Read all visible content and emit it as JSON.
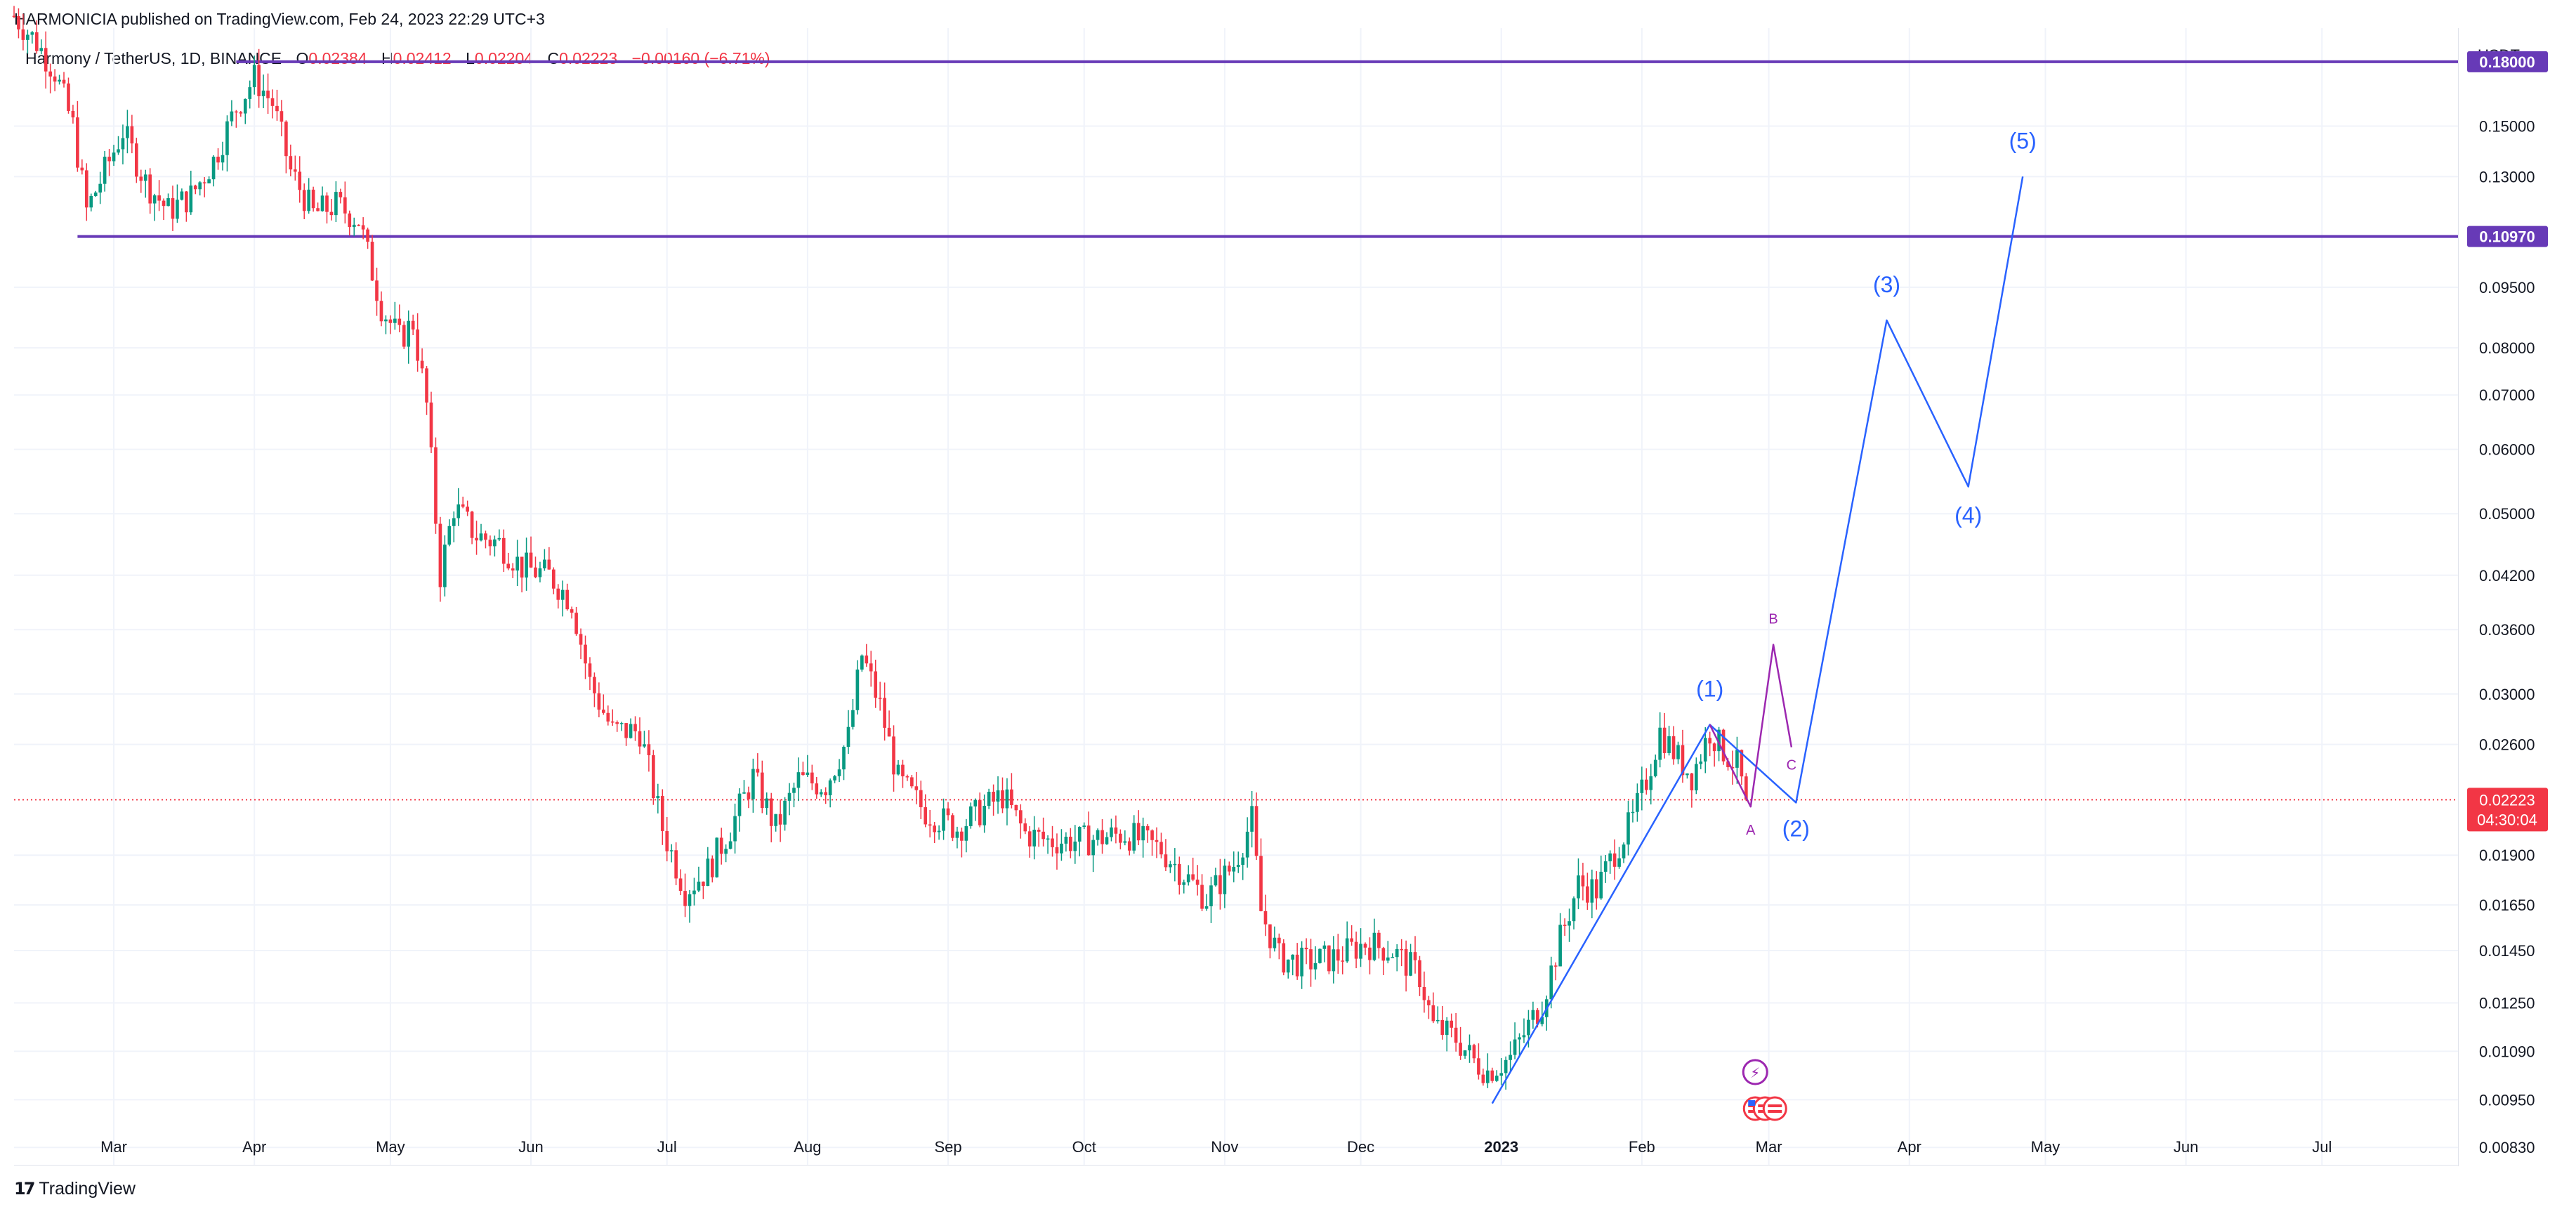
{
  "header": {
    "published": "HARMONICIA published on TradingView.com, Feb 24, 2023 22:29 UTC+3"
  },
  "legend": {
    "symbol": "Harmony / TetherUS, 1D, BINANCE",
    "o_label": "O",
    "o": "0.02384",
    "h_label": "H",
    "h": "0.02412",
    "l_label": "L",
    "l": "0.02204",
    "c_label": "C",
    "c": "0.02223",
    "change": "−0.00160 (−6.71%)"
  },
  "axis": {
    "currency": "USDT"
  },
  "footer": {
    "logo_mark": "𝟭𝟳",
    "logo_text": "TradingView"
  },
  "colors": {
    "up": "#089981",
    "down": "#f23645",
    "level": "#673ab7",
    "wave": "#2962ff",
    "abc": "#9c27b0",
    "grid": "#f0f3fa",
    "price": "#f23645"
  },
  "chart_data": {
    "type": "candlestick",
    "y_scale": "log",
    "y_range": [
      0.0079,
      0.198
    ],
    "x_range": [
      "2022-02-07",
      "2023-07-31"
    ],
    "grid": true,
    "y_ticks": [
      "0.15000",
      "0.13000",
      "0.09500",
      "0.08000",
      "0.07000",
      "0.06000",
      "0.05000",
      "0.04200",
      "0.03600",
      "0.03000",
      "0.02600",
      "0.01900",
      "0.01650",
      "0.01450",
      "0.01250",
      "0.01090",
      "0.00950",
      "0.00830"
    ],
    "x_ticks": [
      {
        "label": "Mar",
        "date": "2022-03-01"
      },
      {
        "label": "Apr",
        "date": "2022-04-01"
      },
      {
        "label": "May",
        "date": "2022-05-01"
      },
      {
        "label": "Jun",
        "date": "2022-06-01"
      },
      {
        "label": "Jul",
        "date": "2022-07-01"
      },
      {
        "label": "Aug",
        "date": "2022-08-01"
      },
      {
        "label": "Sep",
        "date": "2022-09-01"
      },
      {
        "label": "Oct",
        "date": "2022-10-01"
      },
      {
        "label": "Nov",
        "date": "2022-11-01"
      },
      {
        "label": "Dec",
        "date": "2022-12-01"
      },
      {
        "label": "2023",
        "date": "2023-01-01",
        "bold": true
      },
      {
        "label": "Feb",
        "date": "2023-02-01"
      },
      {
        "label": "Mar",
        "date": "2023-03-01"
      },
      {
        "label": "Apr",
        "date": "2023-04-01"
      },
      {
        "label": "May",
        "date": "2023-05-01"
      },
      {
        "label": "Jun",
        "date": "2023-06-01"
      },
      {
        "label": "Jul",
        "date": "2023-07-01"
      }
    ],
    "horizontal_levels": [
      {
        "value": 0.18,
        "label": "0.18000",
        "from": "2022-03-28"
      },
      {
        "value": 0.1097,
        "label": "0.10970",
        "from": "2022-02-21"
      }
    ],
    "last_price": {
      "value": 0.02223,
      "label": "0.02223",
      "countdown": "04:30:04"
    },
    "price_path": [
      [
        "2022-02-07",
        0.205
      ],
      [
        "2022-02-12",
        0.19
      ],
      [
        "2022-02-16",
        0.175
      ],
      [
        "2022-02-20",
        0.15
      ],
      [
        "2022-02-23",
        0.118
      ],
      [
        "2022-02-27",
        0.132
      ],
      [
        "2022-03-03",
        0.148
      ],
      [
        "2022-03-08",
        0.128
      ],
      [
        "2022-03-13",
        0.118
      ],
      [
        "2022-03-18",
        0.123
      ],
      [
        "2022-03-23",
        0.136
      ],
      [
        "2022-03-28",
        0.158
      ],
      [
        "2022-04-01",
        0.172
      ],
      [
        "2022-04-05",
        0.16
      ],
      [
        "2022-04-09",
        0.132
      ],
      [
        "2022-04-14",
        0.117
      ],
      [
        "2022-04-19",
        0.12
      ],
      [
        "2022-04-24",
        0.115
      ],
      [
        "2022-04-29",
        0.09
      ],
      [
        "2022-05-03",
        0.082
      ],
      [
        "2022-05-06",
        0.086
      ],
      [
        "2022-05-09",
        0.068
      ],
      [
        "2022-05-12",
        0.042
      ],
      [
        "2022-05-15",
        0.051
      ],
      [
        "2022-05-20",
        0.047
      ],
      [
        "2022-05-25",
        0.046
      ],
      [
        "2022-05-30",
        0.043
      ],
      [
        "2022-06-05",
        0.042
      ],
      [
        "2022-06-10",
        0.039
      ],
      [
        "2022-06-14",
        0.031
      ],
      [
        "2022-06-19",
        0.027
      ],
      [
        "2022-06-25",
        0.027
      ],
      [
        "2022-06-30",
        0.0205
      ],
      [
        "2022-07-05",
        0.0172
      ],
      [
        "2022-07-10",
        0.0182
      ],
      [
        "2022-07-15",
        0.0205
      ],
      [
        "2022-07-20",
        0.0237
      ],
      [
        "2022-07-25",
        0.0205
      ],
      [
        "2022-07-30",
        0.0235
      ],
      [
        "2022-08-05",
        0.0232
      ],
      [
        "2022-08-10",
        0.0265
      ],
      [
        "2022-08-13",
        0.0335
      ],
      [
        "2022-08-17",
        0.029
      ],
      [
        "2022-08-21",
        0.0235
      ],
      [
        "2022-08-27",
        0.0215
      ],
      [
        "2022-09-03",
        0.0205
      ],
      [
        "2022-09-08",
        0.0215
      ],
      [
        "2022-09-13",
        0.0225
      ],
      [
        "2022-09-18",
        0.0202
      ],
      [
        "2022-09-23",
        0.0198
      ],
      [
        "2022-10-01",
        0.0198
      ],
      [
        "2022-10-10",
        0.0202
      ],
      [
        "2022-10-18",
        0.0193
      ],
      [
        "2022-10-25",
        0.0175
      ],
      [
        "2022-10-28",
        0.0168
      ],
      [
        "2022-11-03",
        0.0185
      ],
      [
        "2022-11-07",
        0.021
      ],
      [
        "2022-11-09",
        0.0162
      ],
      [
        "2022-11-13",
        0.0142
      ],
      [
        "2022-11-18",
        0.014
      ],
      [
        "2022-11-25",
        0.0142
      ],
      [
        "2022-12-02",
        0.0148
      ],
      [
        "2022-12-08",
        0.0145
      ],
      [
        "2022-12-14",
        0.0135
      ],
      [
        "2022-12-17",
        0.0117
      ],
      [
        "2022-12-22",
        0.0113
      ],
      [
        "2022-12-26",
        0.0106
      ],
      [
        "2022-12-29",
        0.0103
      ],
      [
        "2023-01-03",
        0.0107
      ],
      [
        "2023-01-07",
        0.0117
      ],
      [
        "2023-01-10",
        0.0125
      ],
      [
        "2023-01-14",
        0.015
      ],
      [
        "2023-01-18",
        0.0175
      ],
      [
        "2023-01-22",
        0.0172
      ],
      [
        "2023-01-26",
        0.0192
      ],
      [
        "2023-01-30",
        0.021
      ],
      [
        "2023-02-02",
        0.0235
      ],
      [
        "2023-02-05",
        0.027
      ],
      [
        "2023-02-09",
        0.025
      ],
      [
        "2023-02-12",
        0.0238
      ],
      [
        "2023-02-16",
        0.027
      ],
      [
        "2023-02-19",
        0.0255
      ],
      [
        "2023-02-22",
        0.0245
      ],
      [
        "2023-02-24",
        0.02223
      ]
    ],
    "elliott_wave": {
      "points": [
        {
          "date": "2022-12-30",
          "value": 0.0094,
          "label": ""
        },
        {
          "date": "2023-02-16",
          "value": 0.0275,
          "label": "(1)"
        },
        {
          "date": "2023-03-07",
          "value": 0.02205,
          "label": "(2)"
        },
        {
          "date": "2023-03-27",
          "value": 0.0865,
          "label": "(3)"
        },
        {
          "date": "2023-04-14",
          "value": 0.054,
          "label": "(4)"
        },
        {
          "date": "2023-04-26",
          "value": 0.13,
          "label": "(5)"
        }
      ]
    },
    "abc_correction": {
      "points": [
        {
          "date": "2023-02-16",
          "value": 0.0275,
          "label": ""
        },
        {
          "date": "2023-02-25",
          "value": 0.0218,
          "label": "A"
        },
        {
          "date": "2023-03-02",
          "value": 0.0345,
          "label": "B"
        },
        {
          "date": "2023-03-06",
          "value": 0.0258,
          "label": "C"
        }
      ]
    }
  }
}
